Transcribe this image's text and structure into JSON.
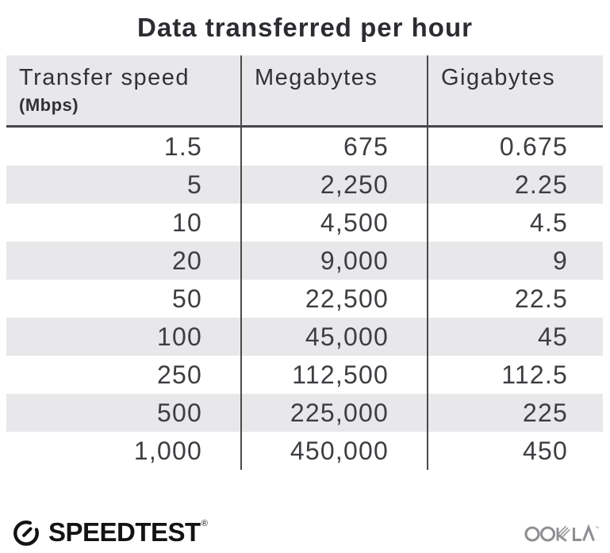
{
  "title": "Data transferred per hour",
  "chart_data": {
    "type": "table",
    "title": "Data transferred per hour",
    "columns": [
      {
        "label": "Transfer speed",
        "sublabel": "(Mbps)"
      },
      {
        "label": "Megabytes",
        "sublabel": ""
      },
      {
        "label": "Gigabytes",
        "sublabel": ""
      }
    ],
    "rows": [
      [
        "1.5",
        "675",
        "0.675"
      ],
      [
        "5",
        "2,250",
        "2.25"
      ],
      [
        "10",
        "4,500",
        "4.5"
      ],
      [
        "20",
        "9,000",
        "9"
      ],
      [
        "50",
        "22,500",
        "22.5"
      ],
      [
        "100",
        "45,000",
        "45"
      ],
      [
        "250",
        "112,500",
        "112.5"
      ],
      [
        "500",
        "225,000",
        "225"
      ],
      [
        "1,000",
        "450,000",
        "450"
      ]
    ],
    "layout": {
      "striped_rows": "even rows shaded",
      "column_dividers": true,
      "legend": "none"
    }
  },
  "footer": {
    "speedtest_label": "SPEEDTEST",
    "speedtest_mark": "®",
    "speedtest_icon": "gauge-icon",
    "ookla_label": "OOKLA",
    "ookla_mark": "™"
  },
  "colors": {
    "background": "#ffffff",
    "header_bg": "#e8e7ea",
    "stripe": "#e8e7ea",
    "divider": "#4a4a4a",
    "header_rule": "#47464b",
    "title_text": "#2d2c31",
    "header_text": "#323136",
    "number_text": "#3e3d42",
    "speedtest_black": "#131313",
    "ookla_gray": "#8f8f93"
  }
}
